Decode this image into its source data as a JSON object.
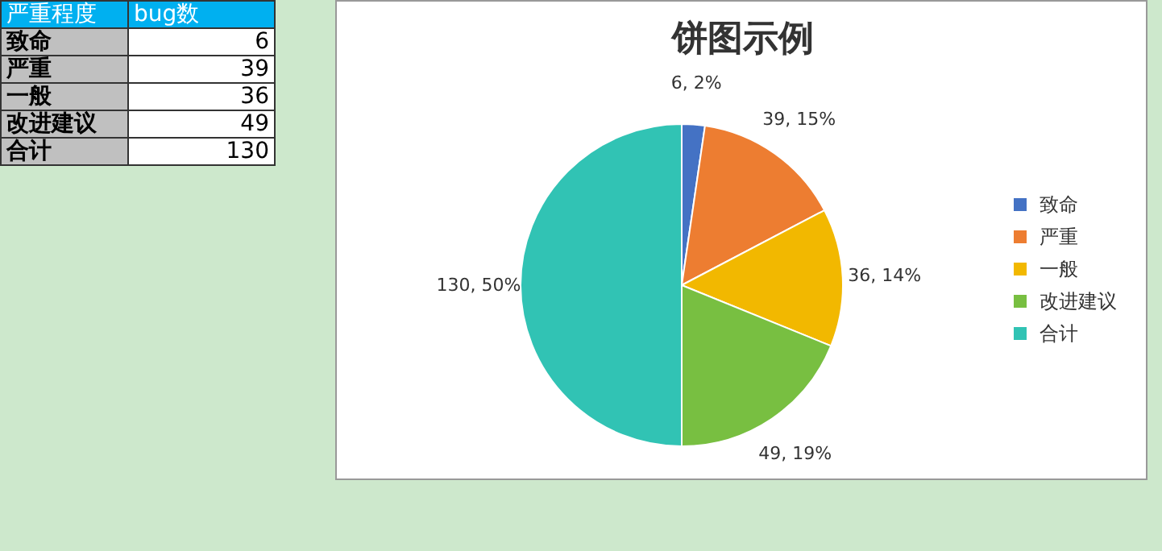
{
  "chart_data": [
    {
      "type": "other",
      "xlabel": "严重程度",
      "ylabel": "bug数",
      "categories": [
        "致命",
        "严重",
        "一般",
        "改进建议",
        "合计"
      ],
      "values": [
        6,
        39,
        36,
        49,
        130
      ],
      "data_labels": true
    },
    {
      "type": "pie",
      "title": "饼图示例",
      "categories": [
        "致命",
        "严重",
        "一般",
        "改进建议",
        "合计"
      ],
      "values": [
        6,
        39,
        36,
        49,
        130
      ],
      "colors": [
        "#4472c4",
        "#ed7d31",
        "#f2b800",
        "#78bf41",
        "#31c3b4"
      ],
      "value_labels": [
        "6, 2%",
        "39, 15%",
        "36, 14%",
        "49, 19%",
        "130, 50%"
      ],
      "legend": "right"
    }
  ]
}
